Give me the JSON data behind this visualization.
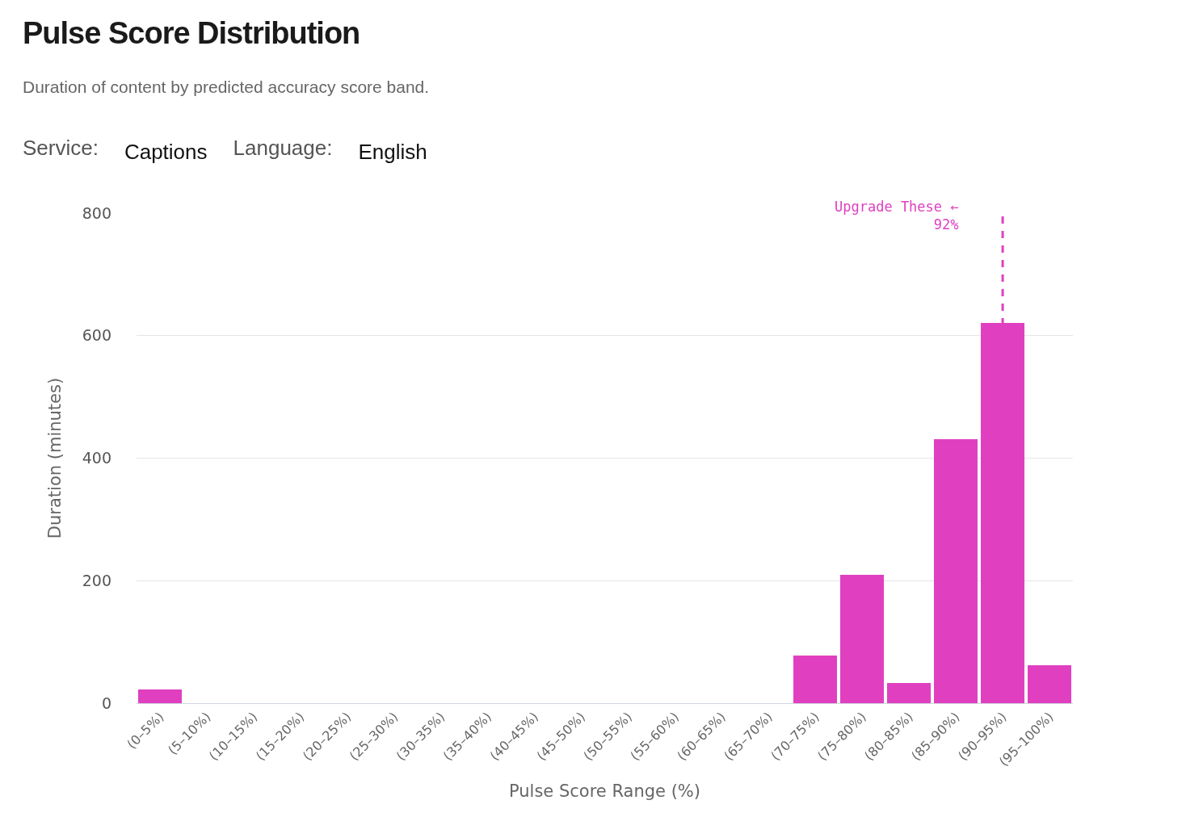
{
  "chart_data": {
    "type": "bar",
    "title": "Pulse Score Distribution",
    "subtitle": "Duration of content by predicted accuracy score band.",
    "annotations": [
      "Service:",
      "Captions",
      "Language:",
      "English"
    ],
    "xlabel": "Pulse Score Range (%)",
    "ylabel": "Duration (minutes)",
    "categories": [
      "(0–5%)",
      "(5–10%)",
      "(10–15%)",
      "(15–20%)",
      "(20–25%)",
      "(25–30%)",
      "(30–35%)",
      "(35–40%)",
      "(40–45%)",
      "(45–50%)",
      "(50–55%)",
      "(55–60%)",
      "(60–65%)",
      "(65–70%)",
      "(70–75%)",
      "(75–80%)",
      "(80–85%)",
      "(85–90%)",
      "(90–95%)",
      "(95–100%)"
    ],
    "values": [
      22,
      0,
      0,
      0,
      0,
      0,
      0,
      0,
      0,
      0,
      0,
      0,
      0,
      0,
      78,
      210,
      33,
      431,
      621,
      62
    ],
    "color": "#e040c0",
    "ylim": [
      0,
      800
    ],
    "yticks": [
      0,
      200,
      400,
      600,
      800
    ],
    "grid": "y",
    "ref_lines": [
      {
        "axis": "x",
        "value": "(90–95%)",
        "label": "Upgrade These ←\n92%",
        "color": "#e040c0",
        "line_style": "dashed"
      }
    ]
  }
}
